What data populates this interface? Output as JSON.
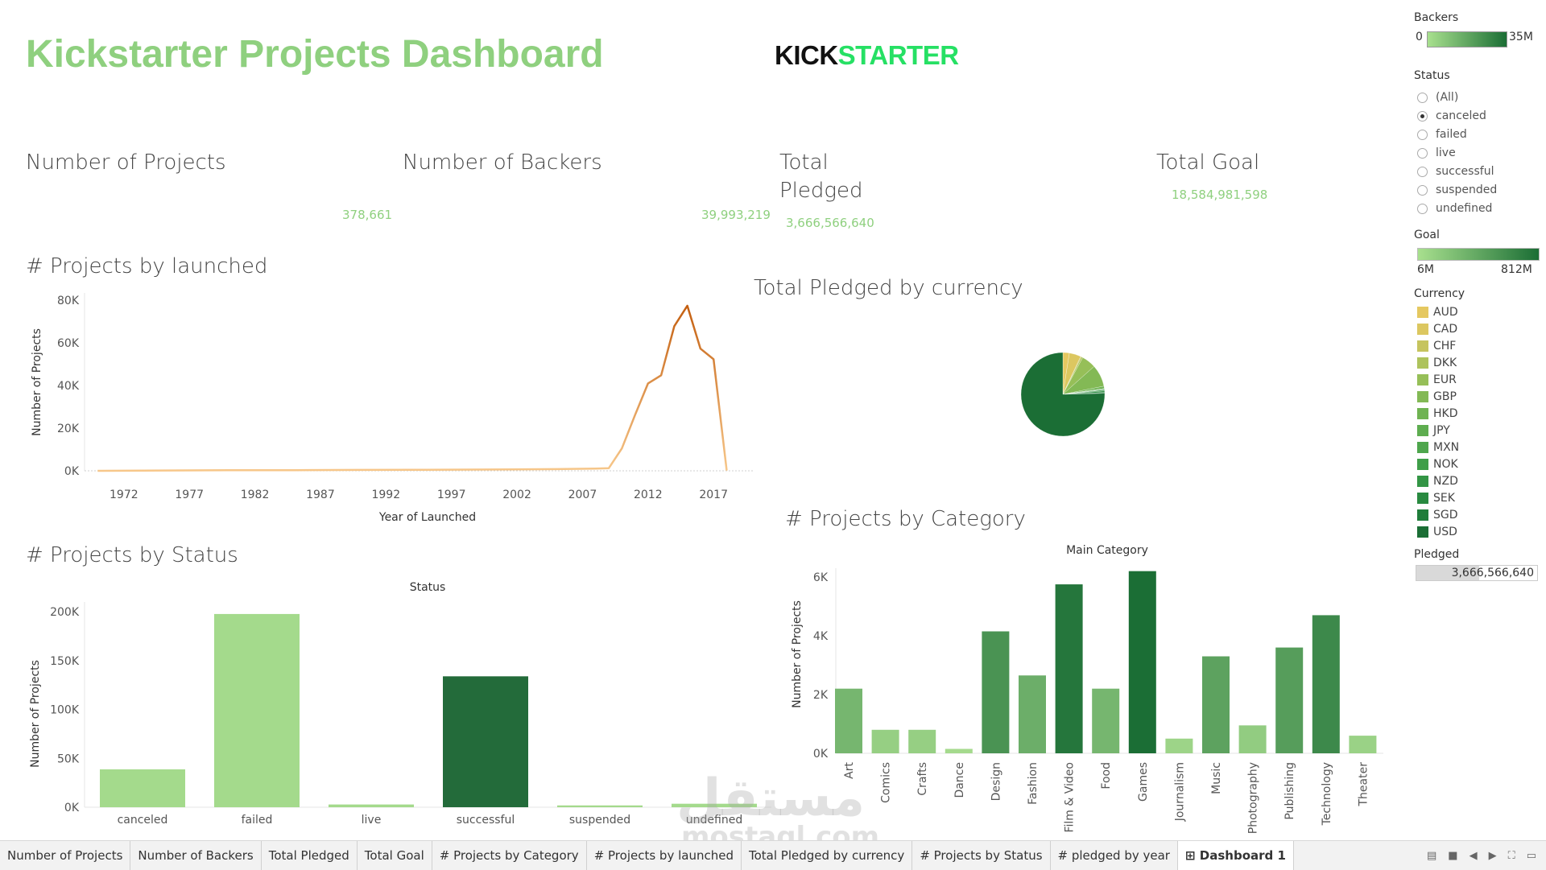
{
  "header": {
    "title": "Kickstarter Projects Dashboard",
    "logo_part1": "KICK",
    "logo_part2": "STARTER"
  },
  "kpis": [
    {
      "label": "Number of Projects",
      "value": "378,661"
    },
    {
      "label": "Number of Backers",
      "value": "39,993,219"
    },
    {
      "label": "Total Pledged",
      "value": "3,666,566,640"
    },
    {
      "label": "Total Goal",
      "value": "18,584,981,598"
    }
  ],
  "sections": {
    "launched": "# Projects by launched",
    "currency": "Total Pledged by currency",
    "category": "# Projects by Category",
    "status": "# Projects by Status"
  },
  "chart_data": [
    {
      "type": "line",
      "title": "# Projects by launched",
      "xlabel": "Year of Launched",
      "ylabel": "Number of Projects",
      "x": [
        1970,
        1975,
        1980,
        1985,
        1990,
        1995,
        2000,
        2005,
        2008,
        2009,
        2010,
        2011,
        2012,
        2013,
        2014,
        2015,
        2016,
        2017,
        2018
      ],
      "y": [
        0,
        150,
        250,
        300,
        400,
        500,
        600,
        800,
        1000,
        1200,
        10500,
        26000,
        41000,
        44800,
        67800,
        77400,
        57300,
        52300,
        100
      ],
      "xticks": [
        "1972",
        "1977",
        "1982",
        "1987",
        "1992",
        "1997",
        "2002",
        "2007",
        "2012",
        "2017"
      ],
      "yticks": [
        "0K",
        "20K",
        "40K",
        "60K",
        "80K"
      ],
      "ylim": [
        0,
        80000
      ]
    },
    {
      "type": "pie",
      "title": "Total Pledged by currency",
      "categories": [
        "AUD",
        "CAD",
        "CHF",
        "DKK",
        "EUR",
        "GBP",
        "HKD",
        "JPY",
        "MXN",
        "NOK",
        "NZD",
        "SEK",
        "SGD",
        "USD"
      ],
      "values": [
        2.5,
        4.5,
        0.3,
        0.6,
        5.5,
        8.5,
        0.9,
        0.05,
        0.3,
        0.2,
        0.4,
        0.6,
        0.3,
        75.5
      ]
    },
    {
      "type": "bar",
      "title": "# Projects by Category",
      "subtitle": "Main Category",
      "ylabel": "Number of Projects",
      "categories": [
        "Art",
        "Comics",
        "Crafts",
        "Dance",
        "Design",
        "Fashion",
        "Film & Video",
        "Food",
        "Games",
        "Journalism",
        "Music",
        "Photography",
        "Publishing",
        "Technology",
        "Theater"
      ],
      "values": [
        2200,
        800,
        800,
        150,
        4150,
        2650,
        5750,
        2200,
        6200,
        500,
        3300,
        950,
        3600,
        4700,
        600
      ],
      "yticks": [
        "0K",
        "2K",
        "4K",
        "6K"
      ],
      "ylim": [
        0,
        6000
      ]
    },
    {
      "type": "bar",
      "title": "# Projects by Status",
      "subtitle": "Status",
      "ylabel": "Number of Projects",
      "categories": [
        "canceled",
        "failed",
        "live",
        "successful",
        "suspended",
        "undefined"
      ],
      "values": [
        38779,
        197719,
        2799,
        133956,
        1846,
        3562
      ],
      "yticks": [
        "0K",
        "50K",
        "100K",
        "150K",
        "200K"
      ],
      "ylim": [
        0,
        200000
      ]
    }
  ],
  "sidebar": {
    "backers": {
      "title": "Backers",
      "min": "0",
      "max": "35M"
    },
    "status": {
      "title": "Status",
      "options": [
        "(All)",
        "canceled",
        "failed",
        "live",
        "successful",
        "suspended",
        "undefined"
      ],
      "selected": "canceled"
    },
    "goal": {
      "title": "Goal",
      "min": "6M",
      "max": "812M"
    },
    "currency": {
      "title": "Currency",
      "items": [
        "AUD",
        "CAD",
        "CHF",
        "DKK",
        "EUR",
        "GBP",
        "HKD",
        "JPY",
        "MXN",
        "NOK",
        "NZD",
        "SEK",
        "SGD",
        "USD"
      ],
      "colors": [
        "#e5c860",
        "#dcc760",
        "#c6c45e",
        "#aec35c",
        "#96bf58",
        "#83b955",
        "#6fb352",
        "#5ead50",
        "#4ea64d",
        "#3f9e49",
        "#339545",
        "#298a40",
        "#1f7d3a",
        "#1b6e35"
      ]
    },
    "pledged": {
      "title": "Pledged",
      "value": "3,666,566,640"
    }
  },
  "tabs": [
    "Number of Projects",
    "Number of Backers",
    "Total Pledged",
    "Total Goal",
    "# Projects by Category",
    "# Projects by launched",
    "Total Pledged by currency",
    "# Projects by Status",
    "# pledged by year",
    "Dashboard 1"
  ],
  "active_tab": "Dashboard 1",
  "watermark": {
    "arabic": "مستقل",
    "latin": "mostaql.com"
  }
}
